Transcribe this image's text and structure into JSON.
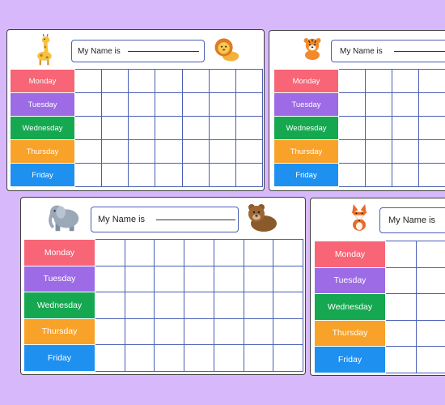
{
  "days": [
    {
      "label": "Monday",
      "color": "#f76577"
    },
    {
      "label": "Tuesday",
      "color": "#9d6be5"
    },
    {
      "label": "Wednesday",
      "color": "#15a850"
    },
    {
      "label": "Thursday",
      "color": "#f8a22a"
    },
    {
      "label": "Friday",
      "color": "#1e90f0"
    }
  ],
  "name_label": "My Name is",
  "background_color": "#d7b9fb",
  "charts": [
    {
      "animals": [
        "giraffe-icon",
        "lion-icon"
      ]
    },
    {
      "animals": [
        "tiger-icon"
      ]
    },
    {
      "animals": [
        "elephant-icon",
        "bear-icon"
      ]
    },
    {
      "animals": [
        "fox-icon"
      ]
    }
  ]
}
